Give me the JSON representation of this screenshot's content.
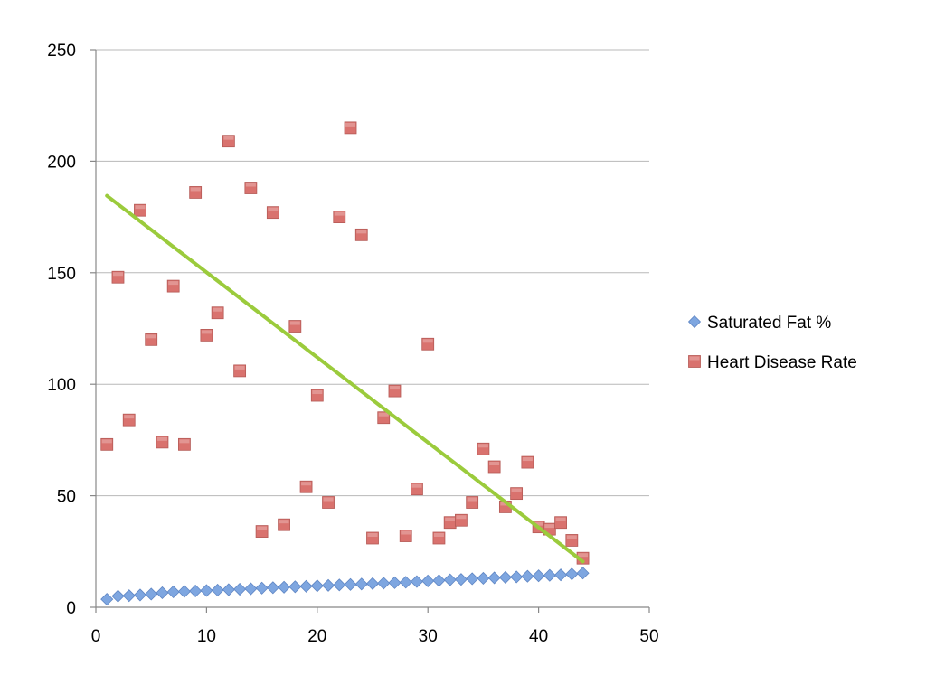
{
  "chart_data": {
    "type": "scatter",
    "title": "",
    "xlabel": "",
    "ylabel": "",
    "xlim": [
      0,
      50
    ],
    "ylim": [
      0,
      250
    ],
    "x_ticks": [
      "0",
      "10",
      "20",
      "30",
      "40",
      "50"
    ],
    "y_ticks": [
      "0",
      "50",
      "100",
      "150",
      "200",
      "250"
    ],
    "grid": "horizontal",
    "legend_position": "right",
    "series": [
      {
        "name": "Saturated Fat %",
        "marker": "diamond",
        "color": "#7EA6E0",
        "x": [
          1,
          2,
          3,
          4,
          5,
          6,
          7,
          8,
          9,
          10,
          11,
          12,
          13,
          14,
          15,
          16,
          17,
          18,
          19,
          20,
          21,
          22,
          23,
          24,
          25,
          26,
          27,
          28,
          29,
          30,
          31,
          32,
          33,
          34,
          35,
          36,
          37,
          38,
          39,
          40,
          41,
          42,
          43,
          44
        ],
        "y": [
          3.6,
          5.0,
          5.2,
          5.5,
          5.9,
          6.5,
          6.9,
          7.1,
          7.3,
          7.5,
          7.7,
          7.9,
          8.1,
          8.3,
          8.6,
          8.8,
          9.0,
          9.2,
          9.4,
          9.6,
          9.8,
          10.0,
          10.2,
          10.4,
          10.6,
          10.8,
          11.0,
          11.2,
          11.5,
          11.8,
          12.0,
          12.3,
          12.5,
          12.8,
          13.0,
          13.2,
          13.4,
          13.6,
          13.9,
          14.1,
          14.3,
          14.5,
          14.9,
          15.3
        ]
      },
      {
        "name": "Heart Disease Rate",
        "marker": "square",
        "color": "#D9726E",
        "x": [
          1,
          2,
          3,
          4,
          5,
          6,
          7,
          8,
          9,
          10,
          11,
          12,
          13,
          14,
          15,
          16,
          17,
          18,
          19,
          20,
          21,
          22,
          23,
          24,
          25,
          26,
          27,
          28,
          29,
          30,
          31,
          32,
          33,
          34,
          35,
          36,
          37,
          38,
          39,
          40,
          41,
          42,
          43,
          44
        ],
        "y": [
          73,
          148,
          84,
          178,
          120,
          74,
          144,
          73,
          186,
          122,
          132,
          209,
          106,
          188,
          34,
          177,
          37,
          126,
          54,
          95,
          47,
          175,
          215,
          167,
          31,
          85,
          97,
          32,
          53,
          118,
          31,
          38,
          39,
          47,
          71,
          63,
          45,
          51,
          65,
          36,
          35,
          38,
          30,
          22
        ]
      }
    ],
    "trendline": {
      "color": "#9BCB3C",
      "x": [
        1,
        44
      ],
      "y": [
        184.5,
        20.5
      ]
    }
  }
}
